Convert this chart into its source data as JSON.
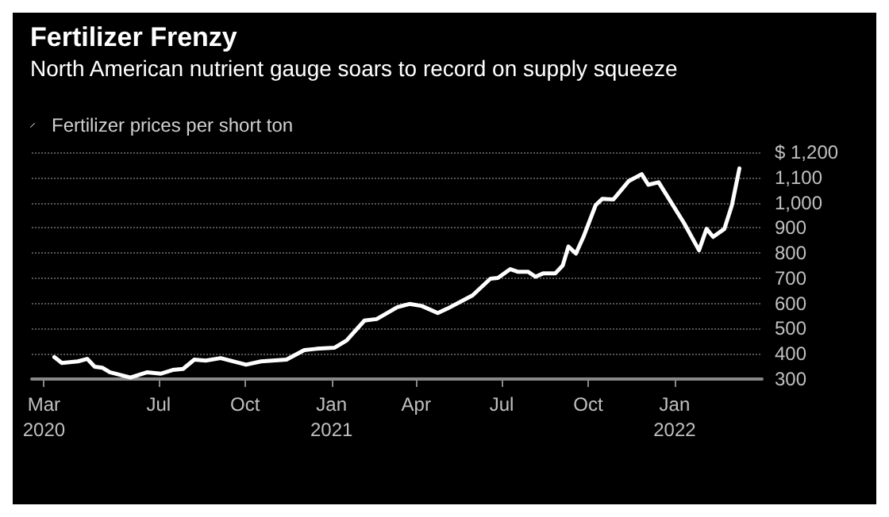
{
  "chart_data": {
    "type": "line",
    "title": "Fertilizer Frenzy",
    "subtitle": "North American nutrient gauge soars to record on supply squeeze",
    "x": [
      "2020-03-12",
      "2020-03-20",
      "2020-04-06",
      "2020-04-16",
      "2020-04-24",
      "2020-05-02",
      "2020-05-10",
      "2020-06-01",
      "2020-06-19",
      "2020-07-03",
      "2020-07-16",
      "2020-07-27",
      "2020-08-08",
      "2020-08-20",
      "2020-09-05",
      "2020-10-02",
      "2020-10-18",
      "2020-11-14",
      "2020-12-03",
      "2020-12-16",
      "2021-01-04",
      "2021-01-17",
      "2021-02-05",
      "2021-02-18",
      "2021-03-12",
      "2021-03-25",
      "2021-04-07",
      "2021-04-24",
      "2021-05-04",
      "2021-05-31",
      "2021-06-19",
      "2021-06-27",
      "2021-07-10",
      "2021-07-18",
      "2021-07-29",
      "2021-08-06",
      "2021-08-14",
      "2021-08-27",
      "2021-09-04",
      "2021-09-10",
      "2021-09-18",
      "2021-09-26",
      "2021-10-09",
      "2021-10-16",
      "2021-10-28",
      "2021-11-13",
      "2021-11-27",
      "2021-12-04",
      "2021-12-15",
      "2022-01-11",
      "2022-01-27",
      "2022-02-04",
      "2022-02-11",
      "2022-02-23",
      "2022-03-03",
      "2022-03-11"
    ],
    "series": [
      {
        "name": "Fertilizer prices per short ton",
        "color": "#ffffff",
        "values": [
          387,
          364,
          370,
          380,
          349,
          345,
          327,
          306,
          327,
          321,
          336,
          340,
          377,
          373,
          383,
          357,
          370,
          377,
          415,
          420,
          424,
          453,
          532,
          538,
          585,
          598,
          590,
          562,
          579,
          632,
          698,
          701,
          736,
          726,
          726,
          706,
          719,
          719,
          751,
          826,
          798,
          864,
          990,
          1015,
          1013,
          1085,
          1113,
          1071,
          1081,
          919,
          811,
          896,
          864,
          896,
          990,
          1136
        ]
      }
    ],
    "xlim": [
      "2020-02-17",
      "2022-04-04"
    ],
    "xticks": [
      {
        "value": "2020-03-01",
        "label": "Mar\n2020"
      },
      {
        "value": "2020-07-01",
        "label": "Jul"
      },
      {
        "value": "2020-10-01",
        "label": "Oct"
      },
      {
        "value": "2021-01-01",
        "label": "Jan\n2021"
      },
      {
        "value": "2021-04-01",
        "label": "Apr"
      },
      {
        "value": "2021-07-01",
        "label": "Jul"
      },
      {
        "value": "2021-10-01",
        "label": "Oct"
      },
      {
        "value": "2022-01-01",
        "label": "Jan\n2022"
      }
    ],
    "ylim": [
      300,
      1200
    ],
    "yticks": [
      300,
      400,
      500,
      600,
      700,
      800,
      900,
      {
        "value": 1000,
        "label": "1,000"
      },
      {
        "value": 1100,
        "label": "1,100"
      },
      {
        "value": 1200,
        "label": "$ 1,200"
      }
    ],
    "grid": "y",
    "legend": "top left",
    "marker": "none",
    "line_style": "solid"
  }
}
